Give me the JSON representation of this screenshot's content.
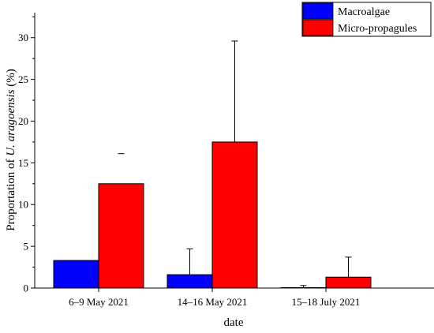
{
  "chart_data": {
    "type": "bar",
    "categories": [
      "6–9 May 2021",
      "14–16 May 2021",
      "15–18 July 2021"
    ],
    "series": [
      {
        "name": "Macroalgae",
        "color": "#0000ff",
        "values": [
          3.3,
          1.6,
          0.05
        ],
        "error_upper": [
          null,
          4.7,
          0.3
        ]
      },
      {
        "name": "Micro-propagules",
        "color": "#ff0000",
        "values": [
          12.5,
          17.5,
          1.3
        ],
        "error_upper": [
          16.1,
          29.6,
          3.7
        ]
      }
    ],
    "xlabel": "date",
    "ylabel_prefix": "Proportation of ",
    "ylabel_species": "U. aragoensis",
    "ylabel_suffix": " (%)",
    "ylim": [
      0,
      33
    ],
    "yticks": [
      "0",
      "5",
      "10",
      "15",
      "20",
      "25",
      "30"
    ],
    "legend_position": "top-right",
    "grid": false
  }
}
